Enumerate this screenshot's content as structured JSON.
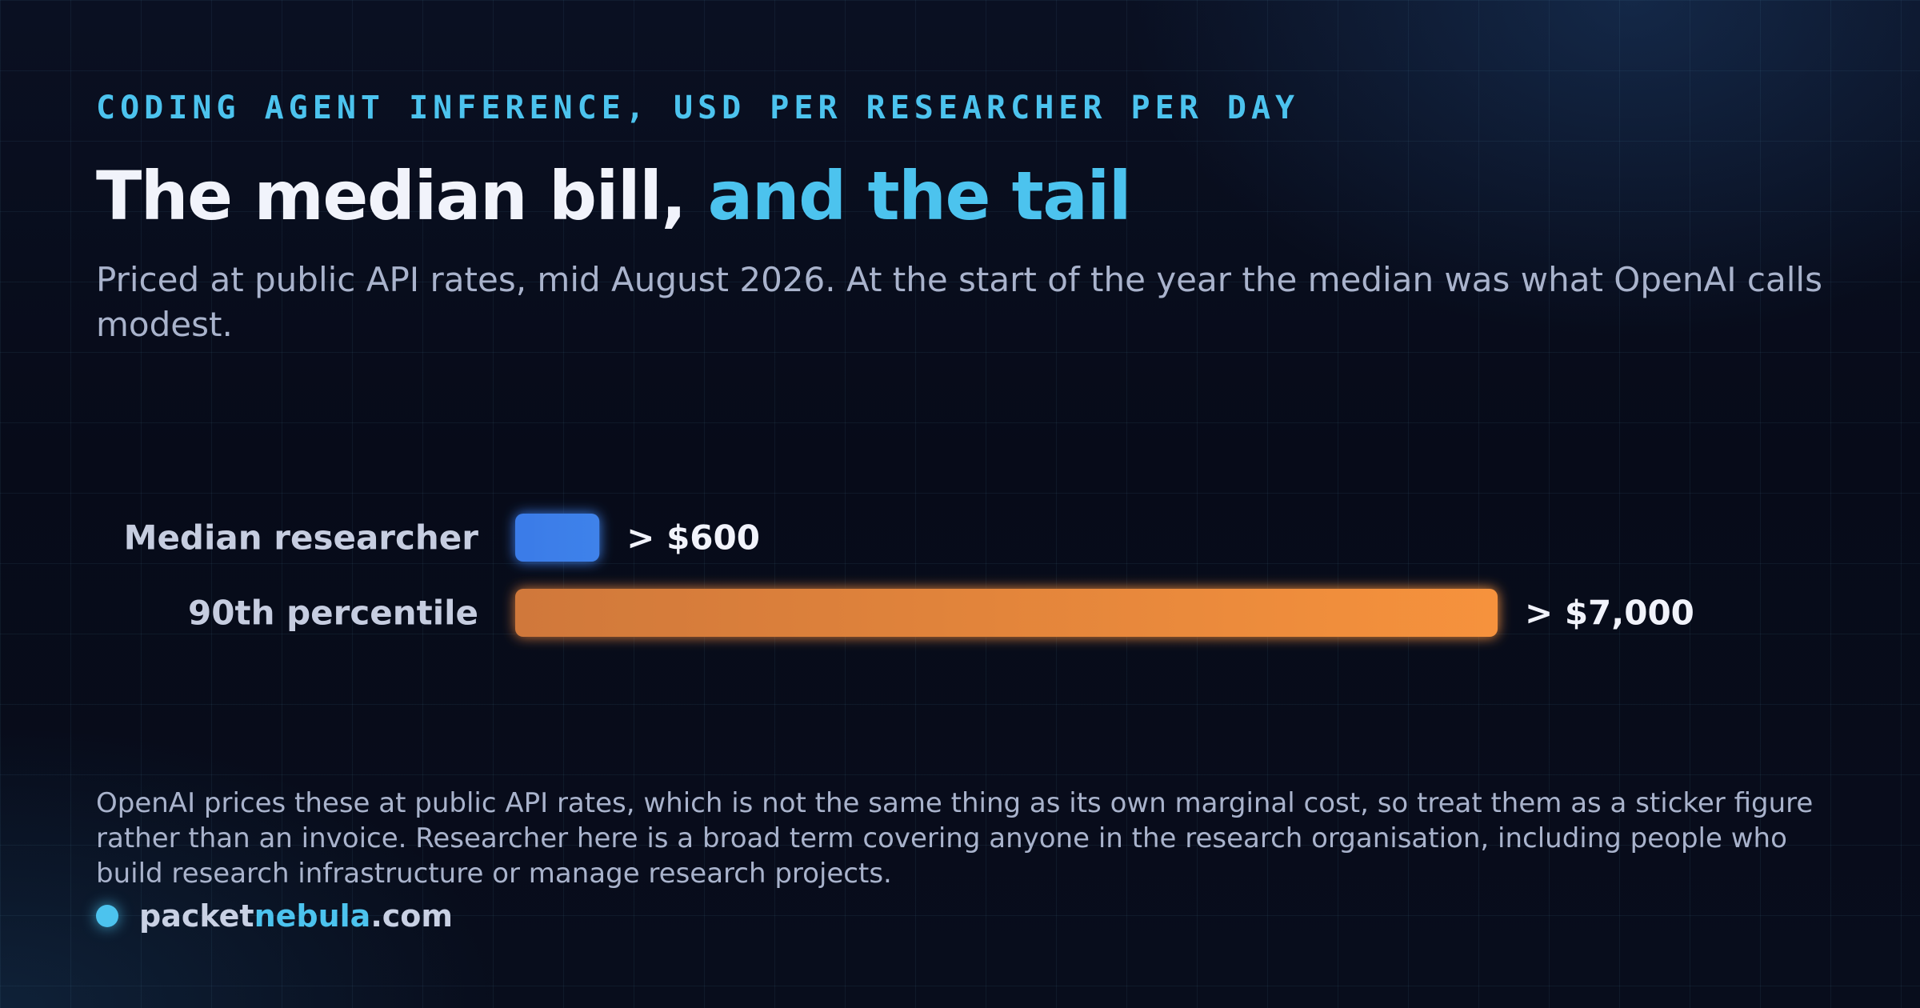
{
  "eyebrow": "CODING AGENT INFERENCE, USD PER RESEARCHER PER DAY",
  "title": {
    "main": "The median bill, ",
    "accent": "and the tail"
  },
  "subtitle": "Priced at public API rates, mid August 2026. At the start of the year the median was what OpenAI calls modest.",
  "chart_data": {
    "type": "bar",
    "orientation": "horizontal",
    "categories": [
      "Median researcher",
      "90th percentile"
    ],
    "values": [
      600,
      7000
    ],
    "value_labels": [
      "> $600",
      "> $7,000"
    ],
    "colors": [
      "#3a7be8",
      "#f6923c"
    ],
    "title": "",
    "xlabel": "",
    "ylabel": "",
    "xlim": [
      0,
      7000
    ],
    "grid": false
  },
  "footnote": "OpenAI prices these at public API rates, which is not the same thing as its own marginal cost, so treat them as a sticker figure rather than an invoice. Researcher here is a broad term covering anyone in the research organisation, including people who build research infrastructure or manage research projects.",
  "brand": {
    "prefix": "packet",
    "middle": "nebula",
    "suffix": ".com"
  },
  "colors": {
    "accent": "#4cc3ee",
    "background": "#070b19",
    "median_bar": "#3a7be8",
    "tail_bar": "#f6923c"
  }
}
